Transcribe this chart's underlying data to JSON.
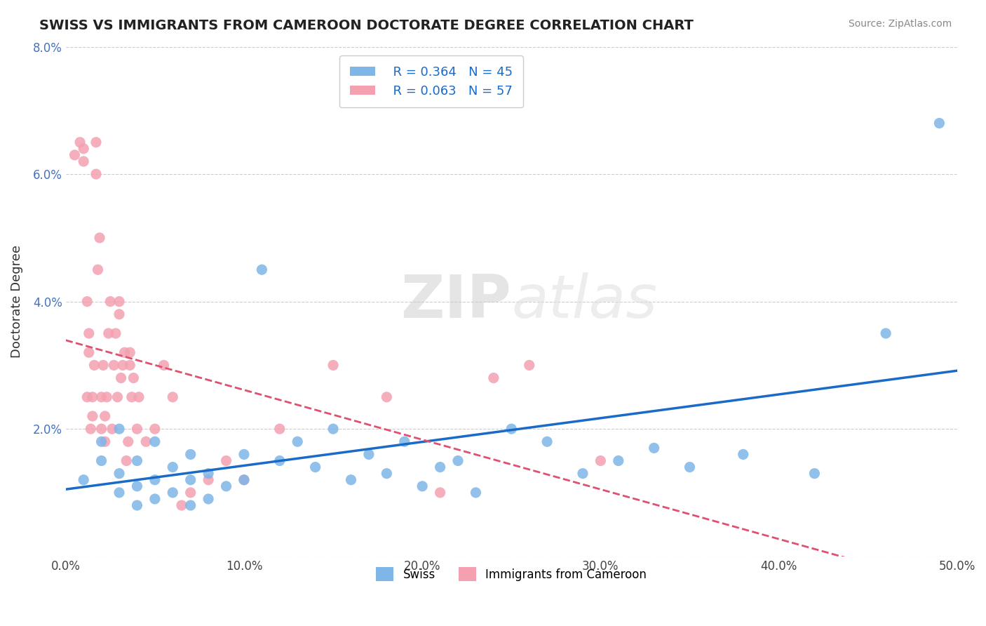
{
  "title": "SWISS VS IMMIGRANTS FROM CAMEROON DOCTORATE DEGREE CORRELATION CHART",
  "source_text": "Source: ZipAtlas.com",
  "xlabel": "",
  "ylabel": "Doctorate Degree",
  "watermark_zip": "ZIP",
  "watermark_atlas": "atlas",
  "xlim": [
    0,
    0.5
  ],
  "ylim": [
    0,
    0.08
  ],
  "xticks": [
    0.0,
    0.1,
    0.2,
    0.3,
    0.4,
    0.5
  ],
  "yticks": [
    0.0,
    0.02,
    0.04,
    0.06,
    0.08
  ],
  "xtick_labels": [
    "0.0%",
    "10.0%",
    "20.0%",
    "30.0%",
    "40.0%",
    "50.0%"
  ],
  "ytick_labels": [
    "",
    "2.0%",
    "4.0%",
    "6.0%",
    "8.0%"
  ],
  "swiss_color": "#7EB6E8",
  "cameroon_color": "#F4A0B0",
  "swiss_line_color": "#1A6AC7",
  "cameroon_line_color": "#E05070",
  "swiss_R": 0.364,
  "swiss_N": 45,
  "cameroon_R": 0.063,
  "cameroon_N": 57,
  "grid_color": "#CCCCCC",
  "background_color": "#FFFFFF",
  "swiss_x": [
    0.01,
    0.02,
    0.02,
    0.03,
    0.03,
    0.03,
    0.04,
    0.04,
    0.04,
    0.05,
    0.05,
    0.05,
    0.06,
    0.06,
    0.07,
    0.07,
    0.07,
    0.08,
    0.08,
    0.09,
    0.1,
    0.1,
    0.11,
    0.12,
    0.13,
    0.14,
    0.15,
    0.16,
    0.17,
    0.18,
    0.19,
    0.2,
    0.21,
    0.22,
    0.23,
    0.25,
    0.27,
    0.29,
    0.31,
    0.33,
    0.35,
    0.38,
    0.42,
    0.46,
    0.49
  ],
  "swiss_y": [
    0.012,
    0.015,
    0.018,
    0.01,
    0.013,
    0.02,
    0.008,
    0.011,
    0.015,
    0.009,
    0.012,
    0.018,
    0.01,
    0.014,
    0.008,
    0.012,
    0.016,
    0.009,
    0.013,
    0.011,
    0.012,
    0.016,
    0.045,
    0.015,
    0.018,
    0.014,
    0.02,
    0.012,
    0.016,
    0.013,
    0.018,
    0.011,
    0.014,
    0.015,
    0.01,
    0.02,
    0.018,
    0.013,
    0.015,
    0.017,
    0.014,
    0.016,
    0.013,
    0.035,
    0.068
  ],
  "cameroon_x": [
    0.005,
    0.008,
    0.01,
    0.01,
    0.012,
    0.012,
    0.013,
    0.013,
    0.014,
    0.015,
    0.015,
    0.016,
    0.017,
    0.017,
    0.018,
    0.019,
    0.02,
    0.02,
    0.021,
    0.022,
    0.022,
    0.023,
    0.024,
    0.025,
    0.026,
    0.027,
    0.028,
    0.029,
    0.03,
    0.03,
    0.031,
    0.032,
    0.033,
    0.034,
    0.035,
    0.036,
    0.036,
    0.037,
    0.038,
    0.04,
    0.041,
    0.045,
    0.05,
    0.055,
    0.06,
    0.065,
    0.07,
    0.08,
    0.09,
    0.1,
    0.12,
    0.15,
    0.18,
    0.21,
    0.24,
    0.26,
    0.3
  ],
  "cameroon_y": [
    0.063,
    0.065,
    0.062,
    0.064,
    0.025,
    0.04,
    0.032,
    0.035,
    0.02,
    0.022,
    0.025,
    0.03,
    0.06,
    0.065,
    0.045,
    0.05,
    0.02,
    0.025,
    0.03,
    0.018,
    0.022,
    0.025,
    0.035,
    0.04,
    0.02,
    0.03,
    0.035,
    0.025,
    0.038,
    0.04,
    0.028,
    0.03,
    0.032,
    0.015,
    0.018,
    0.03,
    0.032,
    0.025,
    0.028,
    0.02,
    0.025,
    0.018,
    0.02,
    0.03,
    0.025,
    0.008,
    0.01,
    0.012,
    0.015,
    0.012,
    0.02,
    0.03,
    0.025,
    0.01,
    0.028,
    0.03,
    0.015
  ]
}
